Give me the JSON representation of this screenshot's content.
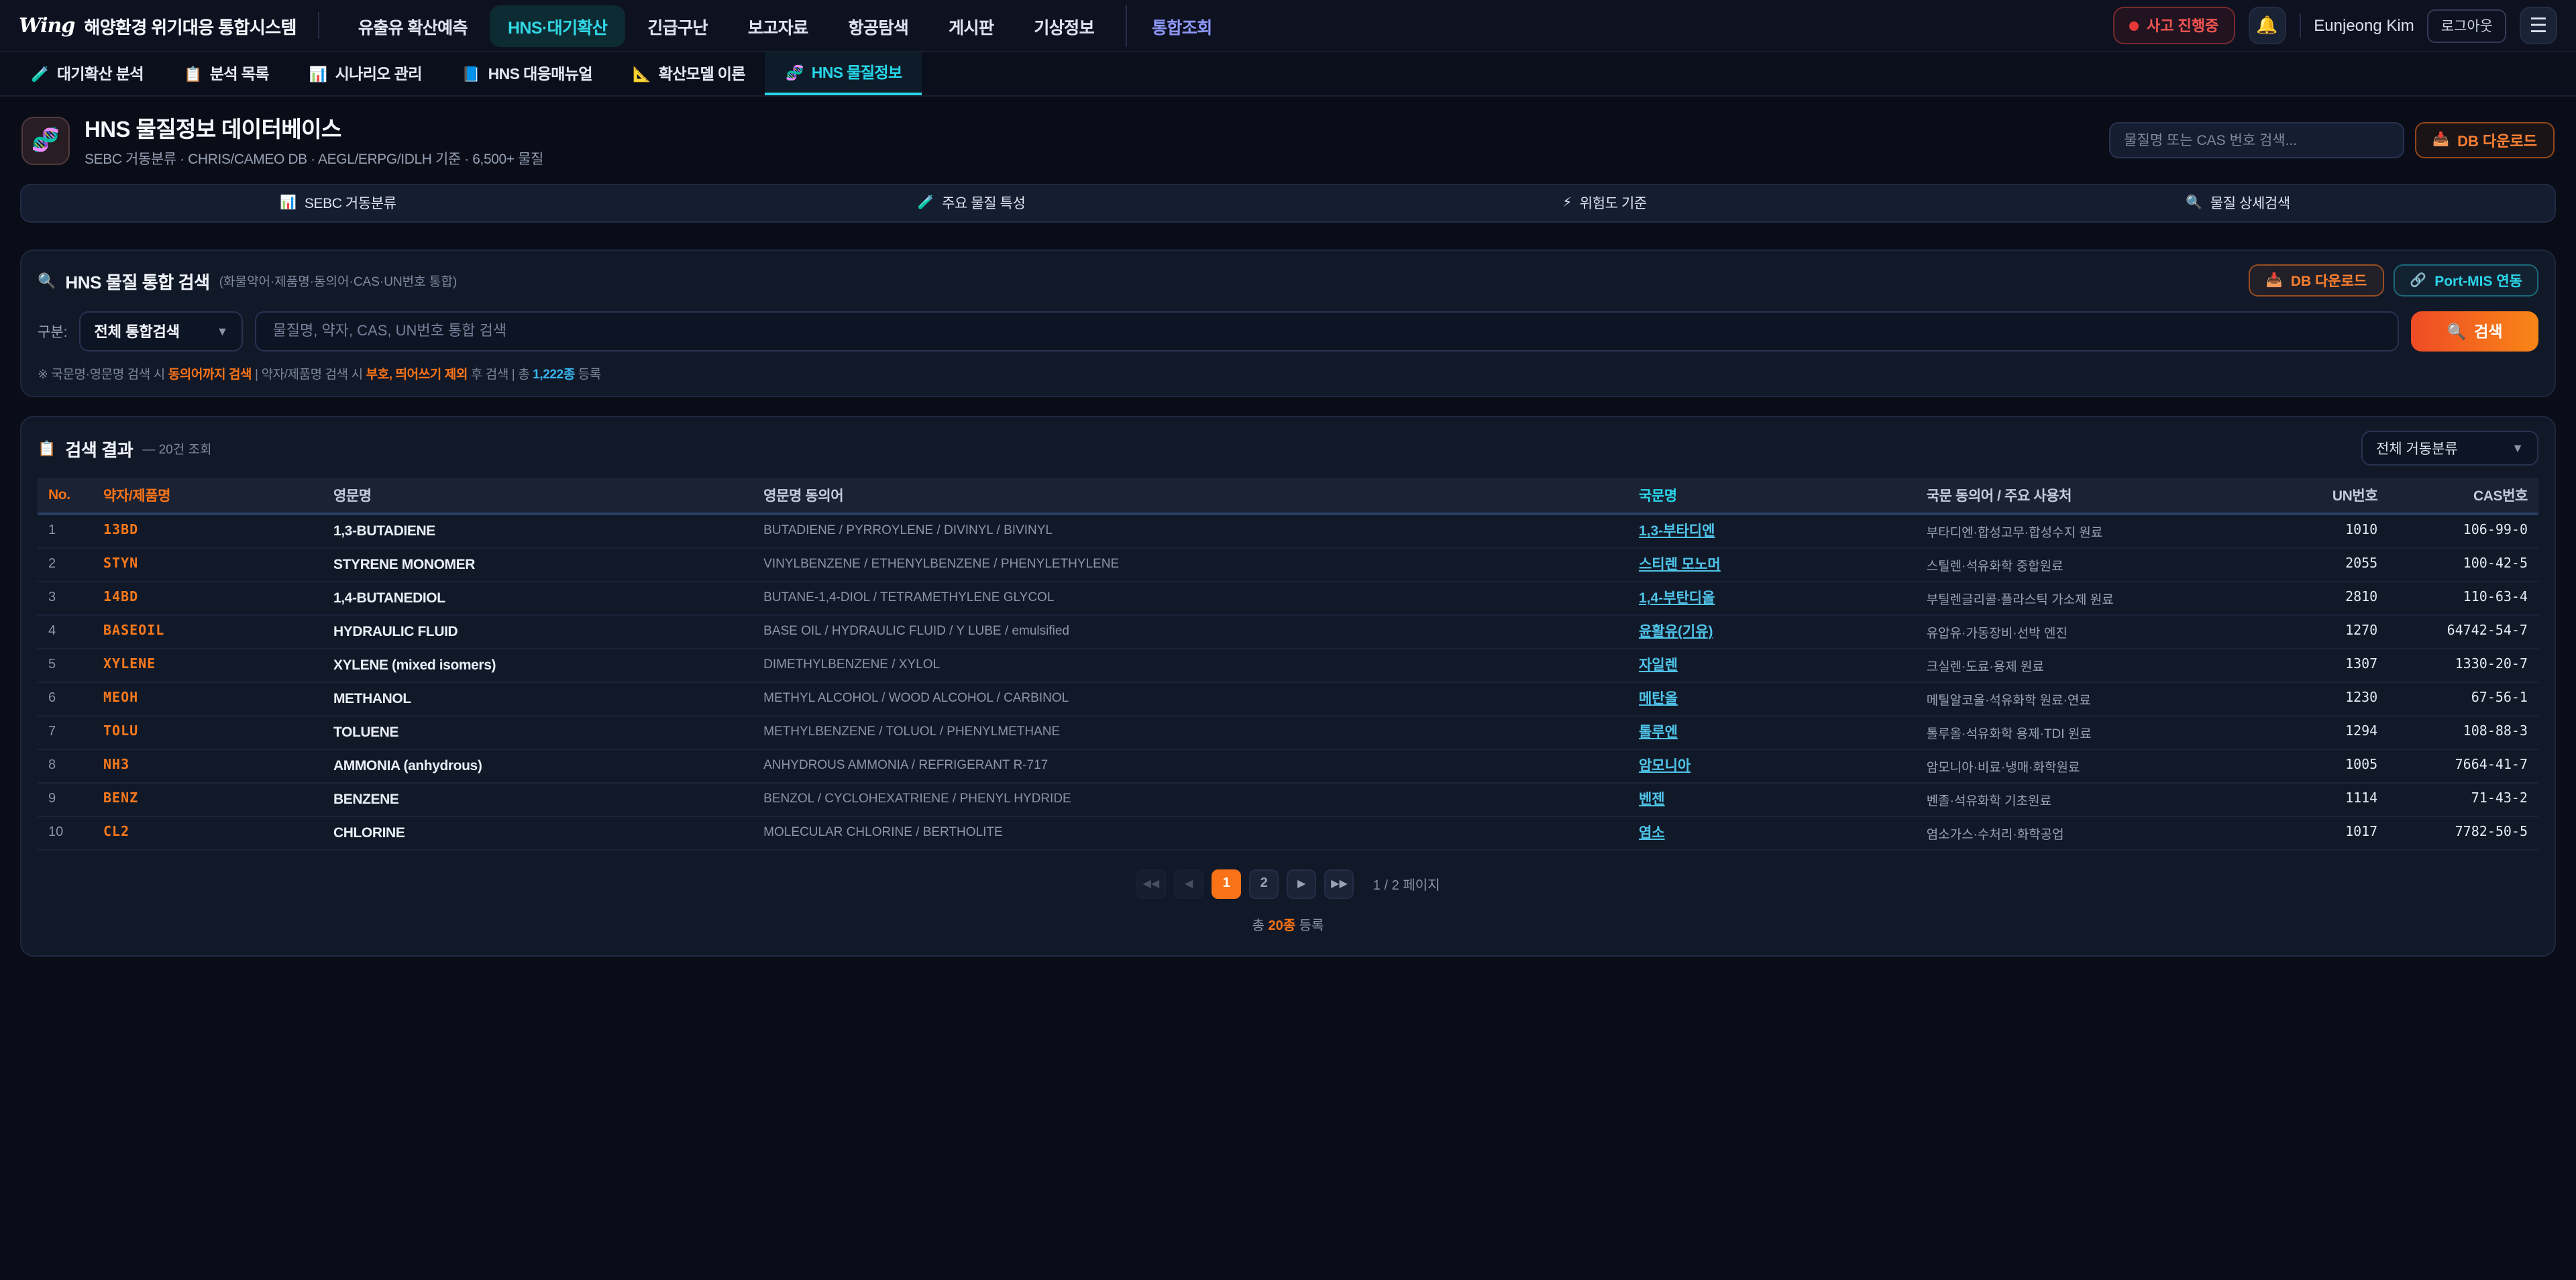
{
  "topnav": {
    "logo_mark": "Wing",
    "logo_text": "해양환경 위기대응 통합시스템",
    "menu": [
      {
        "label": "유출유 확산예측",
        "active": false,
        "accent": false
      },
      {
        "label": "HNS·대기확산",
        "active": true,
        "accent": false
      },
      {
        "label": "긴급구난",
        "active": false,
        "accent": false
      },
      {
        "label": "보고자료",
        "active": false,
        "accent": false
      },
      {
        "label": "항공탐색",
        "active": false,
        "accent": false
      },
      {
        "label": "게시판",
        "active": false,
        "accent": false
      },
      {
        "label": "기상정보",
        "active": false,
        "accent": false
      },
      {
        "label": "통합조회",
        "active": false,
        "accent": true
      }
    ],
    "incident_badge": "사고 진행중",
    "bell_icon": "🔔",
    "user_name": "Eunjeong Kim",
    "logout_label": "로그아웃",
    "hamburger_icon": "☰"
  },
  "tabs": [
    {
      "icon": "🧪",
      "label": "대기확산 분석",
      "active": false
    },
    {
      "icon": "📋",
      "label": "분석 목록",
      "active": false
    },
    {
      "icon": "📊",
      "label": "시나리오 관리",
      "active": false
    },
    {
      "icon": "📘",
      "label": "HNS 대응매뉴얼",
      "active": false
    },
    {
      "icon": "📐",
      "label": "확산모델 이론",
      "active": false
    },
    {
      "icon": "🧬",
      "label": "HNS 물질정보",
      "active": true
    }
  ],
  "header": {
    "icon": "🧬",
    "title": "HNS 물질정보 데이터베이스",
    "subtitle": "SEBC 거동분류 · CHRIS/CAMEO DB · AEGL/ERPG/IDLH 기준 · 6,500+ 물질",
    "quick_search_placeholder": "물질명 또는 CAS 번호 검색...",
    "db_download_icon": "📥",
    "db_download_label": "DB 다운로드"
  },
  "category_bar": [
    {
      "icon": "📊",
      "label": "SEBC 거동분류"
    },
    {
      "icon": "🧪",
      "label": "주요 물질 특성"
    },
    {
      "icon": "⚡",
      "label": "위험도 기준"
    },
    {
      "icon": "🔍",
      "label": "물질 상세검색"
    }
  ],
  "search_panel": {
    "title_icon": "🔍",
    "title": "HNS 물질 통합 검색",
    "title_note": "(화물약어·제품명·동의어·CAS·UN번호 통합)",
    "db_download_icon": "📥",
    "db_download_label": "DB 다운로드",
    "portmis_icon": "🔗",
    "portmis_label": "Port-MIS 연동",
    "field_label": "구분:",
    "select_value": "전체 통합검색",
    "input_placeholder": "물질명, 약자, CAS, UN번호 통합 검색",
    "search_icon": "🔍",
    "search_button": "검색",
    "hint": {
      "prefix": "※ 국문명·영문명 검색 시 ",
      "strong1": "동의어까지 검색",
      "mid1": " | 약자/제품명 검색 시 ",
      "strong2": "부호, 띄어쓰기 제외",
      "mid2": " 후 검색 | 총 ",
      "count": "1,222종",
      "suffix": " 등록"
    }
  },
  "results": {
    "title_icon": "📋",
    "title": "검색 결과",
    "count_note": "— 20건 조회",
    "filter_value": "전체 거동분류",
    "columns": [
      "No.",
      "약자/제품명",
      "영문명",
      "영문명 동의어",
      "국문명",
      "국문 동의어 / 주요 사용처",
      "UN번호",
      "CAS번호"
    ],
    "rows": [
      {
        "no": 1,
        "abbr": "13BD",
        "eng": "1,3-BUTADIENE",
        "esyn": "BUTADIENE / PYRROYLENE / DIVINYL / BIVINYL",
        "kor": "1,3-부타디엔",
        "ksyn": "부타디엔·합성고무·합성수지 원료",
        "un": "1010",
        "cas": "106-99-0"
      },
      {
        "no": 2,
        "abbr": "STYN",
        "eng": "STYRENE MONOMER",
        "esyn": "VINYLBENZENE / ETHENYLBENZENE / PHENYLETHYLENE",
        "kor": "스티렌 모노머",
        "ksyn": "스틸렌·석유화학 중합원료",
        "un": "2055",
        "cas": "100-42-5"
      },
      {
        "no": 3,
        "abbr": "14BD",
        "eng": "1,4-BUTANEDIOL",
        "esyn": "BUTANE-1,4-DIOL / TETRAMETHYLENE GLYCOL",
        "kor": "1,4-부탄디올",
        "ksyn": "부틸렌글리콜·플라스틱 가소제 원료",
        "un": "2810",
        "cas": "110-63-4"
      },
      {
        "no": 4,
        "abbr": "BASEOIL",
        "eng": "HYDRAULIC FLUID",
        "esyn": "BASE OIL / HYDRAULIC FLUID / Y LUBE / emulsified",
        "kor": "윤활유(기유)",
        "ksyn": "유압유·가동장비·선박 엔진",
        "un": "1270",
        "cas": "64742-54-7"
      },
      {
        "no": 5,
        "abbr": "XYLENE",
        "eng": "XYLENE (mixed isomers)",
        "esyn": "DIMETHYLBENZENE / XYLOL",
        "kor": "자일렌",
        "ksyn": "크실렌·도료·용제 원료",
        "un": "1307",
        "cas": "1330-20-7"
      },
      {
        "no": 6,
        "abbr": "MEOH",
        "eng": "METHANOL",
        "esyn": "METHYL ALCOHOL / WOOD ALCOHOL / CARBINOL",
        "kor": "메탄올",
        "ksyn": "메틸알코올·석유화학 원료·연료",
        "un": "1230",
        "cas": "67-56-1"
      },
      {
        "no": 7,
        "abbr": "TOLU",
        "eng": "TOLUENE",
        "esyn": "METHYLBENZENE / TOLUOL / PHENYLMETHANE",
        "kor": "톨루엔",
        "ksyn": "톨루올·석유화학 용제·TDI 원료",
        "un": "1294",
        "cas": "108-88-3"
      },
      {
        "no": 8,
        "abbr": "NH3",
        "eng": "AMMONIA (anhydrous)",
        "esyn": "ANHYDROUS AMMONIA / REFRIGERANT R-717",
        "kor": "암모니아",
        "ksyn": "암모니아·비료·냉매·화학원료",
        "un": "1005",
        "cas": "7664-41-7"
      },
      {
        "no": 9,
        "abbr": "BENZ",
        "eng": "BENZENE",
        "esyn": "BENZOL / CYCLOHEXATRIENE / PHENYL HYDRIDE",
        "kor": "벤젠",
        "ksyn": "벤졸·석유화학 기초원료",
        "un": "1114",
        "cas": "71-43-2"
      },
      {
        "no": 10,
        "abbr": "CL2",
        "eng": "CHLORINE",
        "esyn": "MOLECULAR CHLORINE / BERTHOLITE",
        "kor": "염소",
        "ksyn": "염소가스·수처리·화학공업",
        "un": "1017",
        "cas": "7782-50-5"
      }
    ],
    "pagination": {
      "first": "◀◀",
      "prev": "◀",
      "pages": [
        "1",
        "2"
      ],
      "current": "1",
      "next": "▶",
      "last": "▶▶",
      "info": "1 / 2 페이지",
      "total_prefix": "총 ",
      "total_strong": "20종",
      "total_suffix": " 등록"
    }
  }
}
